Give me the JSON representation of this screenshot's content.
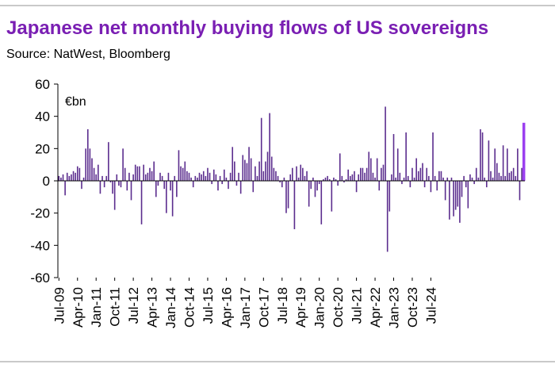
{
  "title": "Japanese net monthly buying flows of US sovereigns",
  "source": "Source: NatWest, Bloomberg",
  "colors": {
    "title": "#7a1fb3",
    "bar": "#5b2d8e",
    "highlight": "#9b3ff0",
    "axis": "#000000"
  },
  "chart_data": {
    "type": "bar",
    "unit_label": "€bn",
    "ylim": [
      -60,
      60
    ],
    "yticks": [
      60,
      40,
      20,
      0,
      -20,
      -40,
      -60
    ],
    "grid": false,
    "legend": "none",
    "start_month": "Jul-09",
    "xtick_labels": [
      "Jul-09",
      "Apr-10",
      "Jan-11",
      "Oct-11",
      "Jul-12",
      "Apr-13",
      "Jan-14",
      "Oct-14",
      "Jul-15",
      "Apr-16",
      "Jan-17",
      "Oct-17",
      "Jul-18",
      "Apr-19",
      "Jan-20",
      "Oct-20",
      "Jul-21",
      "Apr-22",
      "Jan-23",
      "Oct-23",
      "Jul-24"
    ],
    "highlight_last": true,
    "values": [
      3,
      2,
      4,
      -9,
      5,
      3,
      4,
      6,
      5,
      9,
      8,
      -5,
      2,
      20,
      32,
      20,
      14,
      8,
      4,
      10,
      -8,
      3,
      -4,
      3,
      24,
      -1,
      -8,
      -18,
      4,
      -3,
      -4,
      20,
      8,
      -6,
      5,
      -12,
      4,
      10,
      9,
      9,
      -27,
      10,
      4,
      5,
      8,
      6,
      12,
      -10,
      -3,
      5,
      3,
      -5,
      -20,
      5,
      -6,
      -22,
      3,
      -10,
      19,
      9,
      8,
      12,
      6,
      5,
      2,
      -4,
      3,
      2,
      5,
      4,
      6,
      3,
      8,
      5,
      -2,
      7,
      4,
      -6,
      3,
      -2,
      7,
      2,
      -5,
      5,
      21,
      12,
      -3,
      5,
      -8,
      16,
      13,
      11,
      21,
      14,
      -7,
      9,
      3,
      12,
      39,
      6,
      12,
      18,
      42,
      15,
      8,
      6,
      3,
      -1,
      -4,
      2,
      -20,
      -17,
      4,
      8,
      -30,
      9,
      2,
      10,
      8,
      3,
      6,
      -16,
      -5,
      2,
      -10,
      -6,
      -2,
      -27,
      1,
      2,
      3,
      1,
      -19,
      2,
      1,
      -3,
      17,
      3,
      -1,
      1,
      7,
      3,
      4,
      6,
      -7,
      4,
      8,
      8,
      5,
      8,
      18,
      14,
      5,
      2,
      14,
      -6,
      8,
      10,
      46,
      -44,
      -19,
      4,
      29,
      2,
      20,
      5,
      -2,
      2,
      30,
      3,
      -4,
      8,
      2,
      14,
      6,
      8,
      11,
      -4,
      8,
      3,
      -7,
      30,
      3,
      -6,
      6,
      6,
      2,
      -12,
      2,
      -24,
      2,
      -22,
      -18,
      -16,
      -26,
      -10,
      3,
      -4,
      -17,
      4,
      2,
      -2,
      8,
      2,
      32,
      30,
      2,
      -4,
      25,
      6,
      2,
      20,
      11,
      5,
      3,
      22,
      3,
      20,
      5,
      6,
      8,
      3,
      20,
      -12,
      8,
      36
    ]
  }
}
